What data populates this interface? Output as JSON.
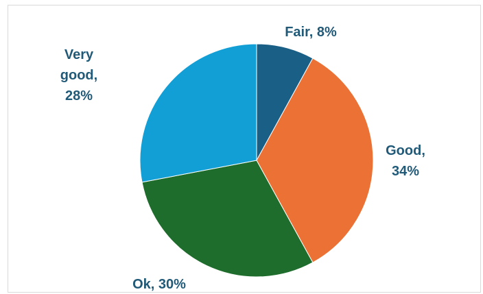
{
  "chart_data": {
    "type": "pie",
    "title": "",
    "start_angle_deg": 0,
    "direction": "clockwise",
    "legend": "none",
    "slices": [
      {
        "label": "Fair",
        "value": 8,
        "color": "#1a5f86",
        "label_lines": [
          "Fair, 8%"
        ]
      },
      {
        "label": "Good",
        "value": 34,
        "color": "#ec7135",
        "label_lines": [
          "Good,",
          "34%"
        ]
      },
      {
        "label": "Ok",
        "value": 30,
        "color": "#1e6d2c",
        "label_lines": [
          "Ok, 30%"
        ]
      },
      {
        "label": "Very good",
        "value": 28,
        "color": "#129fd6",
        "label_lines": [
          "Very",
          "good,",
          "28%"
        ]
      }
    ]
  }
}
